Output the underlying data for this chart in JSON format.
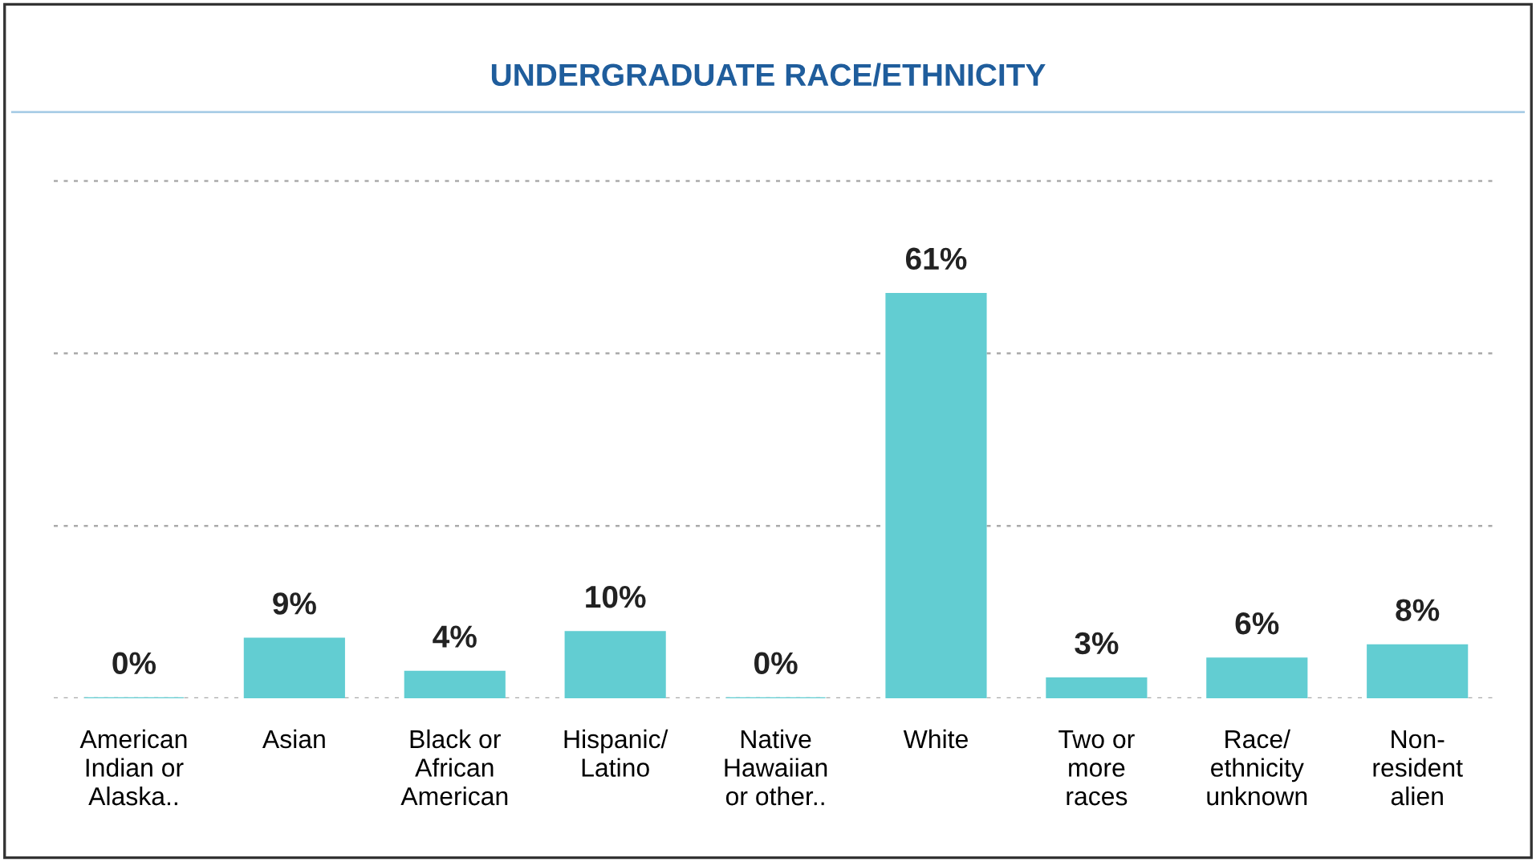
{
  "chart_data": {
    "type": "bar",
    "title": "UNDERGRADUATE RACE/ETHNICITY",
    "categories": [
      "American\nIndian or\nAlaska..",
      "Asian",
      "Black or\nAfrican\nAmerican",
      "Hispanic/\nLatino",
      "Native\nHawaiian\nor other..",
      "White",
      "Two or\nmore\nraces",
      "Race/\nethnicity\nunknown",
      "Non-\nresident\nalien"
    ],
    "values": [
      0,
      9,
      4,
      10,
      0,
      61,
      3,
      6,
      8
    ],
    "value_labels": [
      "0%",
      "9%",
      "4%",
      "10%",
      "0%",
      "61%",
      "3%",
      "6%",
      "8%"
    ],
    "color": "#62cdd2",
    "ref_lines": [
      {
        "axis": "y",
        "value": 0,
        "color": "#aaaaaa",
        "line_style": "dotted"
      },
      {
        "axis": "y",
        "value": 26,
        "color": "#aaaaaa",
        "line_style": "dotted"
      },
      {
        "axis": "y",
        "value": 52,
        "color": "#aaaaaa",
        "line_style": "dotted"
      },
      {
        "axis": "y",
        "value": 78,
        "color": "#aaaaaa",
        "line_style": "dotted"
      }
    ],
    "tick_labels": "x"
  }
}
